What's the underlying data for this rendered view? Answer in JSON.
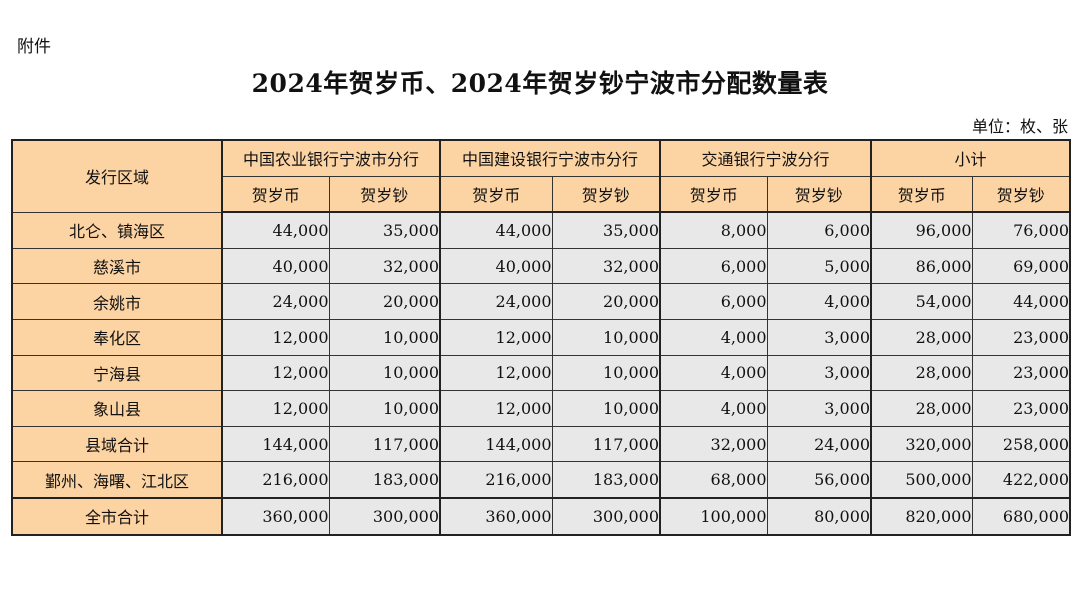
{
  "attachment_label": "附件",
  "title": "2024年贺岁币、2024年贺岁钞宁波市分配数量表",
  "unit": "单位：枚、张",
  "header": {
    "region": "发行区域",
    "groups": [
      "中国农业银行宁波市分行",
      "中国建设银行宁波市分行",
      "交通银行宁波分行",
      "小计"
    ],
    "sub": [
      "贺岁币",
      "贺岁钞"
    ]
  },
  "rows": [
    {
      "region": "北仑、镇海区",
      "values": [
        "44,000",
        "35,000",
        "44,000",
        "35,000",
        "8,000",
        "6,000",
        "96,000",
        "76,000"
      ]
    },
    {
      "region": "慈溪市",
      "values": [
        "40,000",
        "32,000",
        "40,000",
        "32,000",
        "6,000",
        "5,000",
        "86,000",
        "69,000"
      ]
    },
    {
      "region": "余姚市",
      "values": [
        "24,000",
        "20,000",
        "24,000",
        "20,000",
        "6,000",
        "4,000",
        "54,000",
        "44,000"
      ]
    },
    {
      "region": "奉化区",
      "values": [
        "12,000",
        "10,000",
        "12,000",
        "10,000",
        "4,000",
        "3,000",
        "28,000",
        "23,000"
      ]
    },
    {
      "region": "宁海县",
      "values": [
        "12,000",
        "10,000",
        "12,000",
        "10,000",
        "4,000",
        "3,000",
        "28,000",
        "23,000"
      ]
    },
    {
      "region": "象山县",
      "values": [
        "12,000",
        "10,000",
        "12,000",
        "10,000",
        "4,000",
        "3,000",
        "28,000",
        "23,000"
      ]
    },
    {
      "region": "县域合计",
      "values": [
        "144,000",
        "117,000",
        "144,000",
        "117,000",
        "32,000",
        "24,000",
        "320,000",
        "258,000"
      ]
    },
    {
      "region": "鄞州、海曙、江北区",
      "values": [
        "216,000",
        "183,000",
        "216,000",
        "183,000",
        "68,000",
        "56,000",
        "500,000",
        "422,000"
      ]
    },
    {
      "region": "全市合计",
      "values": [
        "360,000",
        "300,000",
        "360,000",
        "300,000",
        "100,000",
        "80,000",
        "820,000",
        "680,000"
      ]
    }
  ],
  "colors": {
    "header_bg": "#fcd3a2",
    "cell_bg": "#e8e8e8",
    "border": "#333333"
  }
}
